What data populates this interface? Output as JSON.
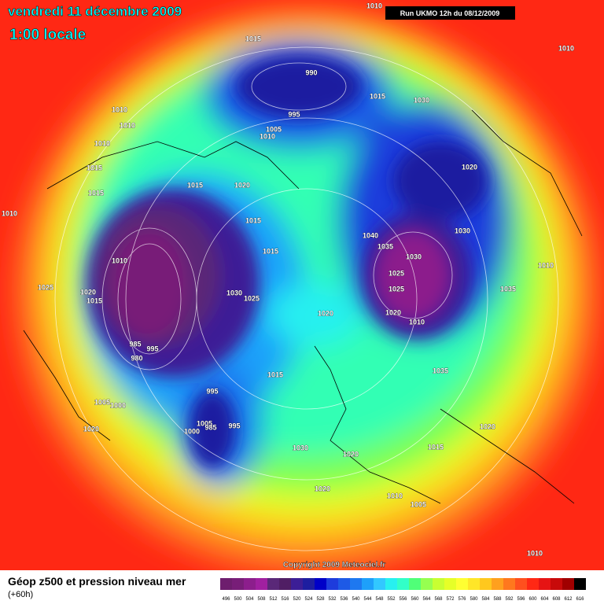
{
  "header": {
    "title": "vendredi 11 décembre 2009",
    "subtitle": "1:00 locale",
    "run": "Run UKMO 12h du 08/12/2009"
  },
  "footer": {
    "copyright": "Copyright 2009 Meteociel.fr"
  },
  "legend": {
    "title": "Géop z500 et pression niveau mer",
    "subtitle": "(+60h)",
    "ticks": [
      496,
      500,
      504,
      508,
      512,
      516,
      520,
      524,
      528,
      532,
      536,
      540,
      544,
      548,
      552,
      556,
      560,
      564,
      568,
      572,
      576,
      580,
      584,
      588,
      592,
      596,
      600,
      604,
      608,
      612,
      616
    ]
  },
  "isobar_labels": [
    1010,
    1010,
    1015,
    990,
    1015,
    1030,
    995,
    1010,
    1010,
    1005,
    1010,
    1010,
    1015,
    1020,
    1015,
    1020,
    1015,
    1010,
    1015,
    1040,
    1030,
    1035,
    1015,
    1030,
    1010,
    1010,
    1025,
    1025,
    1020,
    1030,
    1025,
    1015,
    1025,
    1035,
    1020,
    1020,
    1010,
    985,
    995,
    980,
    1035,
    1015,
    995,
    1005,
    1000,
    1005,
    1000,
    985,
    995,
    1020,
    1020,
    1030,
    1015,
    1020,
    1020,
    1010,
    1005,
    1010
  ]
}
